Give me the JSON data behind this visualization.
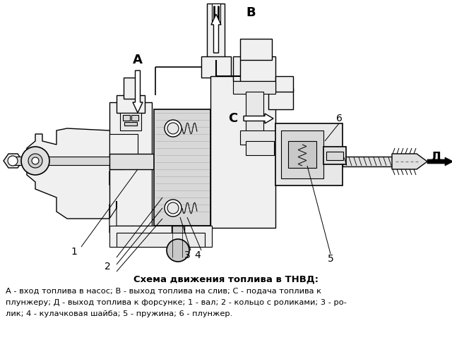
{
  "title": "Схема движения топлива в ТНВД:",
  "caption_line1": "А - вход топлива в насос; В - выход топлива на слив; С - подача топлива к",
  "caption_line2": "плунжеру; Д - выход топлива к форсунке; 1 - вал; 2 - кольцо с роликами; 3 - ро-",
  "caption_line3": "лик; 4 - кулачковая шайба; 5 - пружина; 6 - плунжер.",
  "bg_color": "#ffffff",
  "line_color": "#000000",
  "label_A": "А",
  "label_B": "В",
  "label_C": "С",
  "label_D": "Д",
  "num_labels": [
    "1",
    "2",
    "3",
    "4",
    "5",
    "6"
  ],
  "figsize": [
    6.4,
    4.92
  ],
  "dpi": 100
}
